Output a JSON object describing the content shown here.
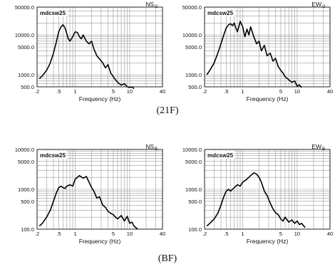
{
  "figure": {
    "captions": [
      "(21F)",
      "(BF)"
    ]
  },
  "chart_data": [
    {
      "type": "line",
      "group": "(21F)",
      "tag": "mdcsw25",
      "component": "NS",
      "component_sub": "G",
      "xlabel": "Frequency (Hz)",
      "x_scale": "log",
      "y_scale": "log",
      "xlim": [
        0.2,
        40
      ],
      "ylim": [
        500,
        50000
      ],
      "xticks": [
        {
          "v": 0.2,
          "t": ".2"
        },
        {
          "v": 0.5,
          "t": ".5"
        },
        {
          "v": 1,
          "t": "1"
        },
        {
          "v": 5,
          "t": "5"
        },
        {
          "v": 10,
          "t": "10"
        },
        {
          "v": 40,
          "t": "40"
        }
      ],
      "yticks": [
        {
          "v": 50000,
          "t": "50000.0"
        },
        {
          "v": 10000,
          "t": "10000.0"
        },
        {
          "v": 5000,
          "t": "5000.0"
        },
        {
          "v": 1000,
          "t": "1000.0"
        },
        {
          "v": 500,
          "t": "500.0"
        }
      ],
      "x": [
        0.22,
        0.25,
        0.3,
        0.35,
        0.4,
        0.45,
        0.5,
        0.55,
        0.6,
        0.65,
        0.7,
        0.75,
        0.8,
        0.9,
        1.0,
        1.1,
        1.2,
        1.3,
        1.4,
        1.6,
        1.8,
        2.0,
        2.2,
        2.5,
        2.8,
        3.2,
        3.6,
        4.0,
        4.5,
        5.0,
        5.5,
        6.0,
        7.0,
        8.0,
        9.0,
        10.0,
        11.0,
        12.0
      ],
      "values": [
        800,
        950,
        1300,
        2000,
        3500,
        6500,
        12000,
        16000,
        18000,
        15000,
        11000,
        8000,
        7000,
        9000,
        12000,
        11500,
        9000,
        8000,
        10000,
        7000,
        6000,
        7000,
        4500,
        3000,
        2500,
        2000,
        1500,
        1800,
        1100,
        900,
        750,
        650,
        550,
        600,
        500,
        480,
        500,
        450
      ]
    },
    {
      "type": "line",
      "group": "(21F)",
      "tag": "mdcsw25",
      "component": "EW",
      "component_sub": "G",
      "xlabel": "Frequency (Hz)",
      "x_scale": "log",
      "y_scale": "log",
      "xlim": [
        0.2,
        40
      ],
      "ylim": [
        500,
        50000
      ],
      "xticks": [
        {
          "v": 0.2,
          "t": ".2"
        },
        {
          "v": 0.5,
          "t": ".5"
        },
        {
          "v": 1,
          "t": "1"
        },
        {
          "v": 5,
          "t": "5"
        },
        {
          "v": 10,
          "t": "10"
        },
        {
          "v": 40,
          "t": "40"
        }
      ],
      "yticks": [
        {
          "v": 50000,
          "t": "50000.0"
        },
        {
          "v": 10000,
          "t": "10000.0"
        },
        {
          "v": 5000,
          "t": "5000.0"
        },
        {
          "v": 1000,
          "t": "1000.0"
        },
        {
          "v": 500,
          "t": "500.0"
        }
      ],
      "x": [
        0.22,
        0.25,
        0.3,
        0.35,
        0.4,
        0.45,
        0.5,
        0.55,
        0.6,
        0.65,
        0.7,
        0.75,
        0.8,
        0.9,
        1.0,
        1.1,
        1.2,
        1.3,
        1.4,
        1.6,
        1.8,
        2.0,
        2.2,
        2.5,
        2.8,
        3.2,
        3.6,
        4.0,
        4.5,
        5.0,
        5.5,
        6.0,
        7.0,
        8.0,
        9.0,
        10.0,
        11.0,
        12.0
      ],
      "values": [
        1000,
        1300,
        2000,
        3500,
        6000,
        10000,
        15000,
        18000,
        19000,
        17000,
        20000,
        15000,
        12000,
        22000,
        16000,
        9000,
        14000,
        10000,
        16000,
        9000,
        6000,
        7000,
        4000,
        5500,
        3000,
        3500,
        2200,
        2600,
        1600,
        1300,
        1100,
        900,
        750,
        650,
        700,
        520,
        560,
        480
      ]
    },
    {
      "type": "line",
      "group": "(BF)",
      "tag": "mdcsw25",
      "component": "NS",
      "component_sub": "B",
      "xlabel": "Frequency (Hz)",
      "x_scale": "log",
      "y_scale": "log",
      "xlim": [
        0.2,
        40
      ],
      "ylim": [
        100,
        10000
      ],
      "xticks": [
        {
          "v": 0.2,
          "t": ".2"
        },
        {
          "v": 0.5,
          "t": ".5"
        },
        {
          "v": 1,
          "t": "1"
        },
        {
          "v": 5,
          "t": "5"
        },
        {
          "v": 10,
          "t": "10"
        },
        {
          "v": 40,
          "t": "40"
        }
      ],
      "yticks": [
        {
          "v": 10000,
          "t": "10000.0"
        },
        {
          "v": 5000,
          "t": "5000.0"
        },
        {
          "v": 1000,
          "t": "1000.0"
        },
        {
          "v": 500,
          "t": "500.0"
        },
        {
          "v": 100,
          "t": "100.0"
        }
      ],
      "x": [
        0.22,
        0.25,
        0.3,
        0.35,
        0.4,
        0.45,
        0.5,
        0.55,
        0.6,
        0.65,
        0.7,
        0.8,
        0.9,
        1.0,
        1.1,
        1.2,
        1.4,
        1.6,
        1.8,
        2.0,
        2.2,
        2.5,
        2.8,
        3.2,
        3.6,
        4.0,
        4.5,
        5.0,
        5.5,
        6.0,
        7.0,
        8.0,
        9.0,
        10.0,
        11.0,
        12.0,
        14.0
      ],
      "values": [
        120,
        140,
        200,
        300,
        500,
        800,
        1100,
        1200,
        1100,
        1050,
        1200,
        1300,
        1200,
        1800,
        2000,
        2200,
        1900,
        2100,
        1500,
        1100,
        900,
        600,
        650,
        400,
        350,
        280,
        250,
        230,
        200,
        180,
        220,
        160,
        210,
        140,
        150,
        120,
        100
      ]
    },
    {
      "type": "line",
      "group": "(BF)",
      "tag": "mdcsw25",
      "component": "EW",
      "component_sub": "B",
      "xlabel": "Frequency (Hz)",
      "x_scale": "log",
      "y_scale": "log",
      "xlim": [
        0.2,
        40
      ],
      "ylim": [
        100,
        10000
      ],
      "xticks": [
        {
          "v": 0.2,
          "t": ".2"
        },
        {
          "v": 0.5,
          "t": ".5"
        },
        {
          "v": 1,
          "t": "1"
        },
        {
          "v": 5,
          "t": "5"
        },
        {
          "v": 10,
          "t": "10"
        },
        {
          "v": 40,
          "t": "40"
        }
      ],
      "yticks": [
        {
          "v": 10000,
          "t": "10000.0"
        },
        {
          "v": 5000,
          "t": "5000.0"
        },
        {
          "v": 1000,
          "t": "1000.0"
        },
        {
          "v": 500,
          "t": "500.0"
        },
        {
          "v": 100,
          "t": "100.0"
        }
      ],
      "x": [
        0.22,
        0.25,
        0.3,
        0.35,
        0.4,
        0.45,
        0.5,
        0.55,
        0.6,
        0.7,
        0.8,
        0.9,
        1.0,
        1.2,
        1.4,
        1.6,
        1.8,
        2.0,
        2.2,
        2.5,
        2.8,
        3.2,
        3.6,
        4.0,
        4.5,
        5.0,
        5.5,
        6.0,
        7.0,
        8.0,
        9.0,
        10.0,
        11.0,
        12.0,
        14.0
      ],
      "values": [
        120,
        140,
        180,
        250,
        400,
        650,
        900,
        1000,
        900,
        1100,
        1300,
        1200,
        1500,
        1800,
        2200,
        2600,
        2400,
        2000,
        1500,
        900,
        700,
        450,
        320,
        260,
        230,
        180,
        160,
        200,
        150,
        170,
        140,
        160,
        130,
        140,
        110
      ]
    }
  ]
}
